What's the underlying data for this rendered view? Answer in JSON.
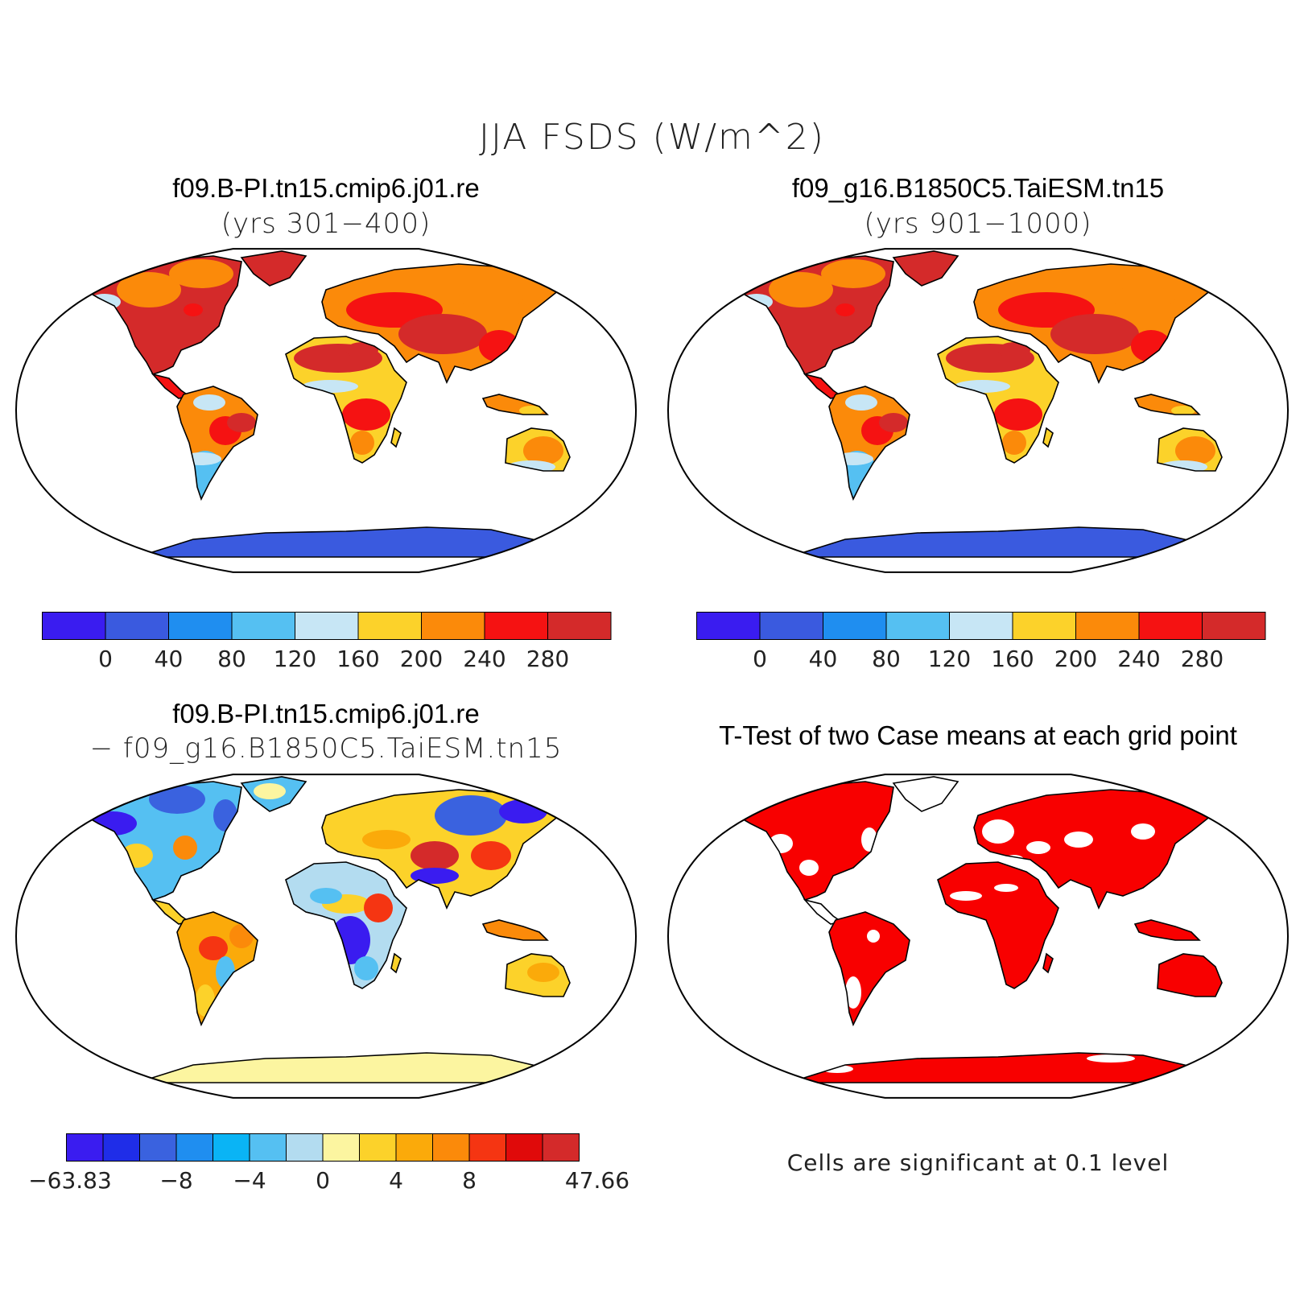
{
  "figure": {
    "title": "JJA FSDS (W/m^2)"
  },
  "panels": [
    {
      "id": "case1",
      "title": "f09.B-PI.tn15.cmip6.j01.re",
      "subtitle": "(yrs 301−400)",
      "colorbar": {
        "colors": [
          "#3a1cf0",
          "#3a5adf",
          "#1f8ef0",
          "#55c0f2",
          "#c7e6f5",
          "#fcd22a",
          "#fb8a0a",
          "#f51212",
          "#d42a2a"
        ],
        "labels": [
          "0",
          "40",
          "80",
          "120",
          "160",
          "200",
          "240",
          "280"
        ]
      }
    },
    {
      "id": "case2",
      "title": "f09_g16.B1850C5.TaiESM.tn15",
      "subtitle": "(yrs 901−1000)",
      "colorbar": {
        "colors": [
          "#3a1cf0",
          "#3a5adf",
          "#1f8ef0",
          "#55c0f2",
          "#c7e6f5",
          "#fcd22a",
          "#fb8a0a",
          "#f51212",
          "#d42a2a"
        ],
        "labels": [
          "0",
          "40",
          "80",
          "120",
          "160",
          "200",
          "240",
          "280"
        ]
      }
    },
    {
      "id": "diff",
      "title": "f09.B-PI.tn15.cmip6.j01.re",
      "subtitle": "− f09_g16.B1850C5.TaiESM.tn15",
      "colorbar": {
        "colors": [
          "#3a1cf0",
          "#1f2de8",
          "#3a62df",
          "#1f8ef0",
          "#0ab4f5",
          "#55c0f2",
          "#b3dcf0",
          "#fcf5a0",
          "#fcd22a",
          "#fbaa0a",
          "#fb8a0a",
          "#f53512",
          "#e00a0a",
          "#d42a2a"
        ],
        "labels": [
          "−63.83",
          "−8",
          "−4",
          "0",
          "4",
          "8",
          "47.66"
        ]
      }
    },
    {
      "id": "ttest",
      "title": "T-Test of two Case means at each grid point",
      "note": "Cells are significant at 0.1 level"
    }
  ]
}
